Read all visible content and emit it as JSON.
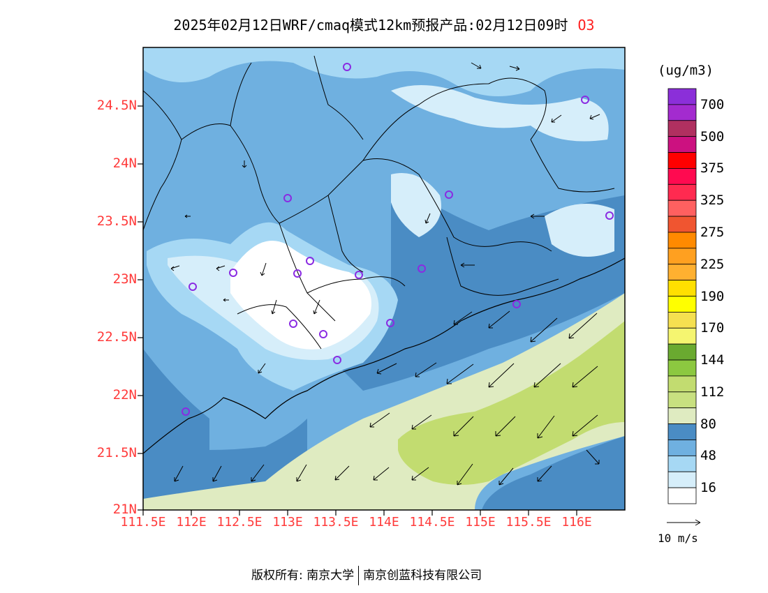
{
  "title": "2025年02月12日WRF/cmaq模式12km预报产品:02月12日09时",
  "species": "O3",
  "lat_labels": [
    "24.5N",
    "24N",
    "23.5N",
    "23N",
    "22.5N",
    "22N",
    "21.5N",
    "21N"
  ],
  "lon_labels": [
    "111.5E",
    "112E",
    "112.5E",
    "113E",
    "113.5E",
    "114E",
    "114.5E",
    "115E",
    "115.5E",
    "116E"
  ],
  "colorbar": {
    "unit": "(ug/m3)",
    "labels": [
      "700",
      "500",
      "375",
      "325",
      "275",
      "225",
      "190",
      "170",
      "144",
      "112",
      "80",
      "48",
      "16"
    ],
    "colors": [
      "#8b2fd9",
      "#a32bcf",
      "#b03060",
      "#cc1180",
      "#ff0000",
      "#ff0a50",
      "#ff2a50",
      "#ff6060",
      "#f05530",
      "#ff8a00",
      "#ffa020",
      "#ffb030",
      "#ffe000",
      "#ffff00",
      "#f5e050",
      "#f5f570",
      "#6aaa30",
      "#8cc840",
      "#c2dc70",
      "#c8e080",
      "#dfebc1",
      "#4a8cc4",
      "#6fb0e0",
      "#a6d8f4",
      "#d6eefa",
      "#ffffff"
    ]
  },
  "wind_ref": "10 m/s",
  "copyright": {
    "left": "版权所有: 南京大学",
    "right": "南京创蓝科技有限公司"
  }
}
